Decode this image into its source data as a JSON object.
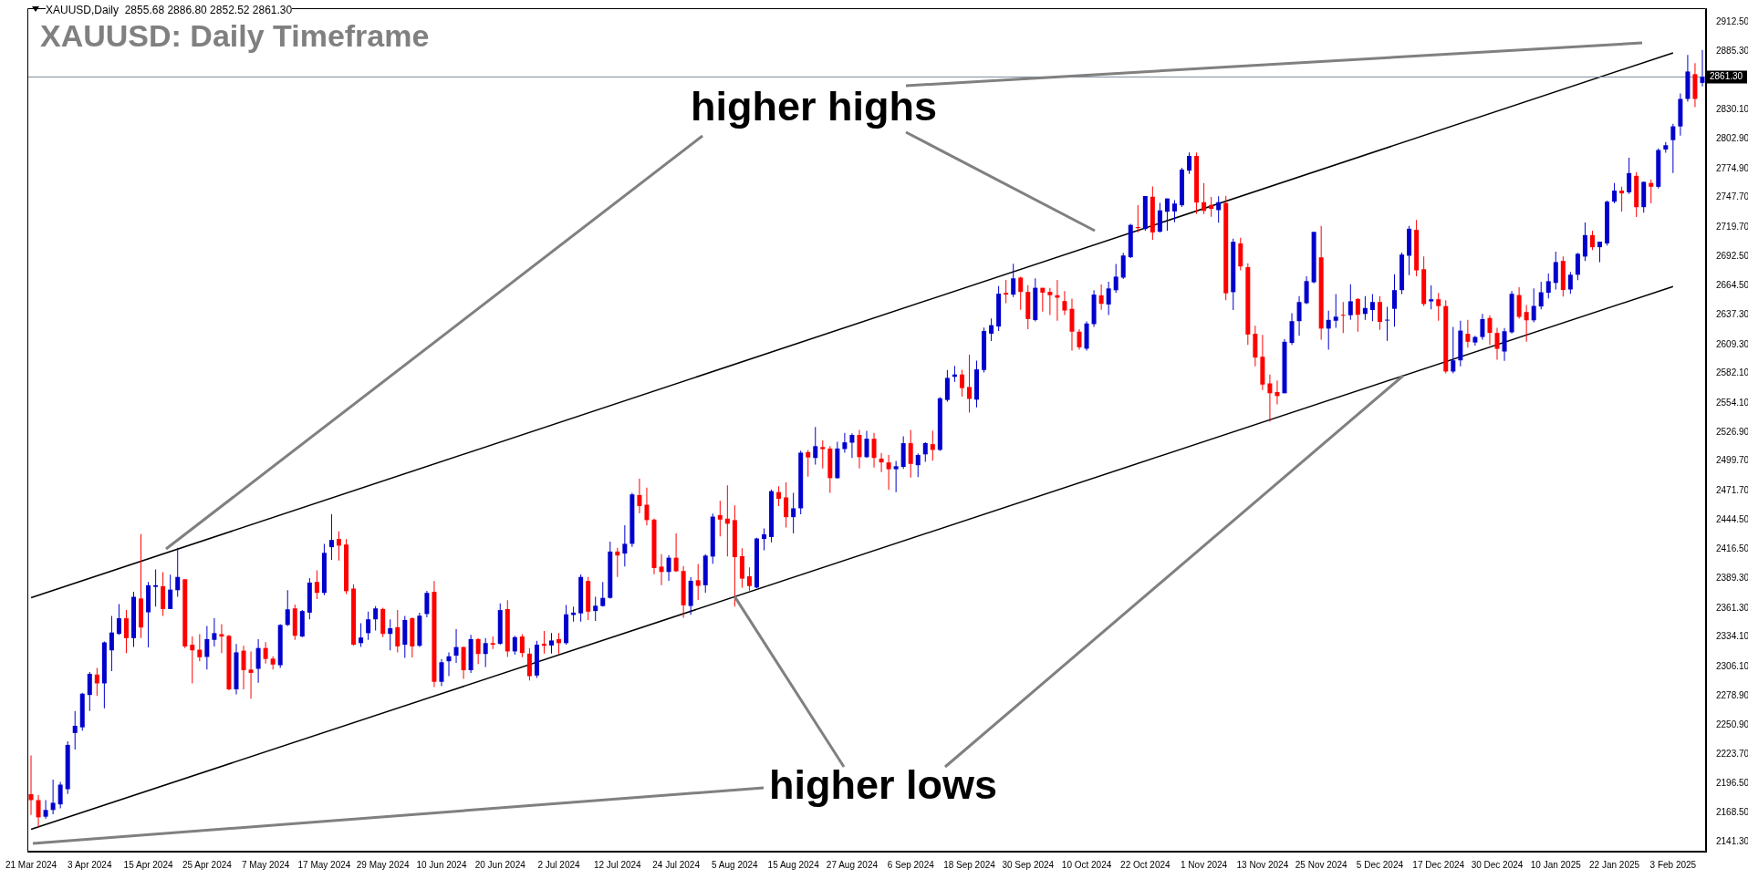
{
  "chart_data": {
    "type": "candlestick",
    "title": "XAUUSD: Daily Timeframe",
    "annotations": [
      "XAUUSD,Daily  2855.68 2886.80 2852.52 2861.30",
      "higher highs",
      {
        "text": "higher lows",
        "x": "5 Aug 2024",
        "y": 2372
      }
    ],
    "categories": [
      "21 Mar 2024",
      null,
      null,
      null,
      null,
      null,
      null,
      null,
      "3 Apr 2024",
      null,
      null,
      null,
      null,
      null,
      null,
      null,
      "15 Apr 2024",
      null,
      null,
      null,
      null,
      null,
      null,
      null,
      "25 Apr 2024",
      null,
      null,
      null,
      null,
      null,
      null,
      null,
      "7 May 2024",
      null,
      null,
      null,
      null,
      null,
      null,
      null,
      "17 May 2024",
      null,
      null,
      null,
      null,
      null,
      null,
      null,
      "29 May 2024",
      null,
      null,
      null,
      null,
      null,
      null,
      null,
      "10 Jun 2024",
      null,
      null,
      null,
      null,
      null,
      null,
      null,
      "20 Jun 2024",
      null,
      null,
      null,
      null,
      null,
      null,
      null,
      "2 Jul 2024",
      null,
      null,
      null,
      null,
      null,
      null,
      null,
      "12 Jul 2024",
      null,
      null,
      null,
      null,
      null,
      null,
      null,
      "24 Jul 2024",
      null,
      null,
      null,
      null,
      null,
      null,
      null,
      "5 Aug 2024",
      null,
      null,
      null,
      null,
      null,
      null,
      null,
      "15 Aug 2024",
      null,
      null,
      null,
      null,
      null,
      null,
      null,
      "27 Aug 2024",
      null,
      null,
      null,
      null,
      null,
      null,
      null,
      "6 Sep 2024",
      null,
      null,
      null,
      null,
      null,
      null,
      null,
      "18 Sep 2024",
      null,
      null,
      null,
      null,
      null,
      null,
      null,
      "30 Sep 2024",
      null,
      null,
      null,
      null,
      null,
      null,
      null,
      "10 Oct 2024",
      null,
      null,
      null,
      null,
      null,
      null,
      null,
      "22 Oct 2024",
      null,
      null,
      null,
      null,
      null,
      null,
      null,
      "1 Nov 2024",
      null,
      null,
      null,
      null,
      null,
      null,
      null,
      "13 Nov 2024",
      null,
      null,
      null,
      null,
      null,
      null,
      null,
      "25 Nov 2024",
      null,
      null,
      null,
      null,
      null,
      null,
      null,
      "5 Dec 2024",
      null,
      null,
      null,
      null,
      null,
      null,
      null,
      "17 Dec 2024",
      null,
      null,
      null,
      null,
      null,
      null,
      null,
      "30 Dec 2024",
      null,
      null,
      null,
      null,
      null,
      null,
      null,
      "10 Jan 2025",
      null,
      null,
      null,
      null,
      null,
      null,
      null,
      "22 Jan 2025",
      null,
      null,
      null,
      null,
      null,
      null,
      null,
      "3 Feb 2025",
      null,
      null,
      null,
      null
    ],
    "ohlc": [
      [
        2186.1,
        2222.5,
        2166.5,
        2180.5
      ],
      [
        2180.5,
        2185.2,
        2155.6,
        2164.3
      ],
      [
        2164.9,
        2180.5,
        2162.8,
        2171.2
      ],
      [
        2171.2,
        2199.8,
        2167.1,
        2178.0
      ],
      [
        2176.5,
        2197.6,
        2172.7,
        2195.1
      ],
      [
        2190.8,
        2235.9,
        2186.4,
        2232.5
      ],
      [
        2243.7,
        2264.5,
        2228.1,
        2250.5
      ],
      [
        2249.0,
        2281.6,
        2245.9,
        2280.7
      ],
      [
        2279.5,
        2301.2,
        2264.5,
        2299.4
      ],
      [
        2298.7,
        2305.0,
        2278.5,
        2290.4
      ],
      [
        2290.4,
        2329.9,
        2267.0,
        2329.0
      ],
      [
        2321.5,
        2353.8,
        2301.9,
        2338.3
      ],
      [
        2337.0,
        2365.0,
        2336.1,
        2351.7
      ],
      [
        2351.7,
        2359.4,
        2319.0,
        2333.0
      ],
      [
        2333.0,
        2376.6,
        2324.6,
        2371.9
      ],
      [
        2370.3,
        2431.0,
        2333.0,
        2343.0
      ],
      [
        2357.3,
        2385.9,
        2324.3,
        2382.8
      ],
      [
        2381.2,
        2397.7,
        2362.6,
        2382.8
      ],
      [
        2381.9,
        2395.2,
        2353.8,
        2360.4
      ],
      [
        2360.4,
        2392.7,
        2360.4,
        2378.7
      ],
      [
        2378.1,
        2418.0,
        2371.9,
        2390.6
      ],
      [
        2388.4,
        2388.4,
        2323.7,
        2325.2
      ],
      [
        2326.8,
        2334.5,
        2290.4,
        2321.5
      ],
      [
        2322.1,
        2336.7,
        2311.2,
        2315.0
      ],
      [
        2315.3,
        2344.5,
        2303.4,
        2332.1
      ],
      [
        2331.4,
        2351.7,
        2325.2,
        2337.7
      ],
      [
        2336.7,
        2346.1,
        2319.0,
        2334.5
      ],
      [
        2335.2,
        2336.1,
        2284.0,
        2284.8
      ],
      [
        2284.8,
        2327.4,
        2280.1,
        2319.6
      ],
      [
        2321.2,
        2325.8,
        2284.8,
        2302.8
      ],
      [
        2303.4,
        2320.5,
        2276.0,
        2300.3
      ],
      [
        2304.1,
        2332.1,
        2291.0,
        2323.7
      ],
      [
        2323.7,
        2329.3,
        2309.0,
        2313.4
      ],
      [
        2313.7,
        2315.9,
        2303.4,
        2308.1
      ],
      [
        2307.5,
        2346.1,
        2305.0,
        2345.4
      ],
      [
        2345.4,
        2378.1,
        2344.5,
        2360.1
      ],
      [
        2361.0,
        2364.7,
        2331.4,
        2335.2
      ],
      [
        2334.5,
        2359.4,
        2333.9,
        2358.5
      ],
      [
        2357.0,
        2389.6,
        2350.7,
        2385.3
      ],
      [
        2385.9,
        2396.8,
        2369.7,
        2375.6
      ],
      [
        2375.6,
        2421.7,
        2373.4,
        2413.3
      ],
      [
        2418.6,
        2449.7,
        2406.7,
        2425.4
      ],
      [
        2426.3,
        2433.5,
        2406.1,
        2420.1
      ],
      [
        2421.1,
        2426.3,
        2374.4,
        2377.2
      ],
      [
        2379.7,
        2383.7,
        2326.1,
        2326.8
      ],
      [
        2328.3,
        2347.0,
        2324.6,
        2333.6
      ],
      [
        2337.7,
        2357.9,
        2331.4,
        2350.7
      ],
      [
        2350.7,
        2363.2,
        2340.1,
        2361.0
      ],
      [
        2360.4,
        2361.6,
        2333.9,
        2337.0
      ],
      [
        2337.0,
        2350.7,
        2321.5,
        2342.3
      ],
      [
        2343.3,
        2359.4,
        2319.6,
        2325.2
      ],
      [
        2326.8,
        2353.8,
        2314.3,
        2350.1
      ],
      [
        2351.7,
        2352.6,
        2314.9,
        2325.2
      ],
      [
        2325.8,
        2356.9,
        2324.6,
        2354.1
      ],
      [
        2355.7,
        2377.5,
        2352.6,
        2375.6
      ],
      [
        2376.6,
        2386.8,
        2287.0,
        2291.9
      ],
      [
        2291.9,
        2313.4,
        2287.9,
        2310.3
      ],
      [
        2311.2,
        2319.6,
        2297.2,
        2315.9
      ],
      [
        2316.5,
        2341.4,
        2309.6,
        2324.6
      ],
      [
        2324.6,
        2325.2,
        2294.7,
        2302.8
      ],
      [
        2302.8,
        2336.1,
        2300.3,
        2332.1
      ],
      [
        2332.1,
        2333.0,
        2308.7,
        2318.1
      ],
      [
        2318.1,
        2333.0,
        2305.9,
        2328.3
      ],
      [
        2328.3,
        2334.5,
        2322.7,
        2326.8
      ],
      [
        2327.7,
        2365.7,
        2326.8,
        2359.4
      ],
      [
        2360.4,
        2368.8,
        2315.3,
        2320.5
      ],
      [
        2320.5,
        2335.2,
        2317.4,
        2333.9
      ],
      [
        2334.5,
        2336.7,
        2315.0,
        2319.0
      ],
      [
        2318.4,
        2323.7,
        2293.2,
        2297.2
      ],
      [
        2297.8,
        2330.5,
        2295.6,
        2326.8
      ],
      [
        2327.7,
        2339.8,
        2318.4,
        2325.8
      ],
      [
        2326.1,
        2337.7,
        2318.4,
        2330.8
      ],
      [
        2332.1,
        2337.7,
        2318.1,
        2328.3
      ],
      [
        2328.3,
        2364.1,
        2326.8,
        2355.4
      ],
      [
        2354.8,
        2362.6,
        2348.5,
        2357.0
      ],
      [
        2356.3,
        2393.0,
        2348.5,
        2390.6
      ],
      [
        2386.8,
        2390.6,
        2350.1,
        2357.9
      ],
      [
        2358.5,
        2371.9,
        2349.2,
        2363.5
      ],
      [
        2363.2,
        2385.9,
        2362.6,
        2370.9
      ],
      [
        2370.9,
        2423.9,
        2370.3,
        2414.5
      ],
      [
        2414.5,
        2418.0,
        2390.6,
        2410.8
      ],
      [
        2412.6,
        2439.3,
        2400.4,
        2421.8
      ],
      [
        2421.8,
        2469.7,
        2419.0,
        2468.3
      ],
      [
        2467.7,
        2483.1,
        2450.5,
        2457.4
      ],
      [
        2458.6,
        2474.7,
        2439.1,
        2444.1
      ],
      [
        2444.6,
        2445.5,
        2393.1,
        2399.0
      ],
      [
        2400.3,
        2412.0,
        2382.8,
        2395.3
      ],
      [
        2395.3,
        2411.2,
        2387.0,
        2408.7
      ],
      [
        2408.7,
        2431.5,
        2395.3,
        2395.9
      ],
      [
        2396.2,
        2400.9,
        2352.2,
        2363.9
      ],
      [
        2363.3,
        2390.3,
        2354.9,
        2387.0
      ],
      [
        2387.5,
        2402.8,
        2368.9,
        2382.2
      ],
      [
        2382.8,
        2412.0,
        2375.8,
        2410.7
      ],
      [
        2409.8,
        2450.2,
        2403.1,
        2447.4
      ],
      [
        2448.8,
        2462.2,
        2428.7,
        2444.6
      ],
      [
        2445.5,
        2476.9,
        2409.8,
        2440.7
      ],
      [
        2444.1,
        2458.0,
        2362.7,
        2409.3
      ],
      [
        2410.1,
        2417.6,
        2380.6,
        2389.0
      ],
      [
        2391.2,
        2399.5,
        2377.8,
        2382.0
      ],
      [
        2380.6,
        2427.4,
        2380.0,
        2426.8
      ],
      [
        2426.3,
        2436.3,
        2415.7,
        2430.7
      ],
      [
        2428.2,
        2472.8,
        2423.2,
        2471.4
      ],
      [
        2470.5,
        2476.1,
        2457.4,
        2464.1
      ],
      [
        2465.5,
        2479.7,
        2437.1,
        2446.9
      ],
      [
        2446.9,
        2469.7,
        2431.5,
        2455.2
      ],
      [
        2455.2,
        2509.5,
        2449.6,
        2507.6
      ],
      [
        2508.1,
        2510.1,
        2485.0,
        2503.1
      ],
      [
        2502.6,
        2531.8,
        2496.4,
        2513.7
      ],
      [
        2512.9,
        2519.3,
        2492.8,
        2510.9
      ],
      [
        2511.5,
        2513.7,
        2469.7,
        2483.6
      ],
      [
        2483.6,
        2517.9,
        2483.1,
        2511.5
      ],
      [
        2511.0,
        2526.2,
        2507.6,
        2517.3
      ],
      [
        2517.0,
        2525.7,
        2502.6,
        2524.3
      ],
      [
        2524.3,
        2529.0,
        2492.8,
        2503.4
      ],
      [
        2503.4,
        2528.2,
        2502.6,
        2520.7
      ],
      [
        2520.7,
        2526.2,
        2493.6,
        2502.6
      ],
      [
        2502.0,
        2507.3,
        2489.2,
        2498.4
      ],
      [
        2498.4,
        2505.3,
        2472.5,
        2492.0
      ],
      [
        2492.0,
        2499.8,
        2470.5,
        2494.8
      ],
      [
        2494.2,
        2522.9,
        2492.3,
        2516.5
      ],
      [
        2516.5,
        2529.0,
        2484.2,
        2497.0
      ],
      [
        2495.8,
        2507.0,
        2484.6,
        2505.4
      ],
      [
        2506.0,
        2517.5,
        2499.0,
        2516.6
      ],
      [
        2515.6,
        2528.4,
        2500.0,
        2510.2
      ],
      [
        2510.2,
        2559.8,
        2509.2,
        2558.8
      ],
      [
        2557.2,
        2585.4,
        2555.6,
        2578.0
      ],
      [
        2579.0,
        2589.2,
        2574.2,
        2581.2
      ],
      [
        2581.2,
        2585.4,
        2560.4,
        2568.4
      ],
      [
        2569.4,
        2599.8,
        2545.4,
        2558.2
      ],
      [
        2557.5,
        2594.3,
        2550.2,
        2586.0
      ],
      [
        2585.4,
        2625.4,
        2583.1,
        2622.2
      ],
      [
        2619.6,
        2634.0,
        2612.6,
        2627.6
      ],
      [
        2626.3,
        2664.4,
        2622.2,
        2657.3
      ],
      [
        2658.0,
        2670.1,
        2648.4,
        2656.4
      ],
      [
        2656.4,
        2685.5,
        2654.1,
        2671.7
      ],
      [
        2672.4,
        2673.3,
        2642.0,
        2658.9
      ],
      [
        2658.9,
        2665.3,
        2623.8,
        2633.4
      ],
      [
        2632.4,
        2671.7,
        2631.1,
        2662.8
      ],
      [
        2662.8,
        2662.8,
        2640.4,
        2658.3
      ],
      [
        2659.0,
        2662.8,
        2637.2,
        2655.8
      ],
      [
        2655.8,
        2670.1,
        2631.8,
        2653.5
      ],
      [
        2650.3,
        2659.6,
        2637.2,
        2641.4
      ],
      [
        2643.0,
        2652.5,
        2603.6,
        2621.5
      ],
      [
        2621.5,
        2623.8,
        2604.6,
        2606.8
      ],
      [
        2605.5,
        2631.1,
        2603.6,
        2629.2
      ],
      [
        2628.6,
        2660.5,
        2626.0,
        2656.4
      ],
      [
        2655.7,
        2666.0,
        2642.0,
        2647.7
      ],
      [
        2647.1,
        2668.5,
        2637.2,
        2662.2
      ],
      [
        2660.5,
        2685.2,
        2658.0,
        2673.3
      ],
      [
        2672.4,
        2695.7,
        2671.1,
        2693.2
      ],
      [
        2691.6,
        2723.0,
        2690.9,
        2722.0
      ],
      [
        2720.0,
        2740.5,
        2715.0,
        2719.0
      ],
      [
        2718.1,
        2749.2,
        2716.5,
        2749.2
      ],
      [
        2748.5,
        2758.1,
        2707.9,
        2714.9
      ],
      [
        2715.6,
        2742.7,
        2714.9,
        2735.7
      ],
      [
        2734.4,
        2746.9,
        2716.5,
        2746.9
      ],
      [
        2734.7,
        2745.3,
        2724.5,
        2742.1
      ],
      [
        2740.5,
        2775.7,
        2738.9,
        2774.1
      ],
      [
        2773.1,
        2790.1,
        2770.0,
        2786.9
      ],
      [
        2786.9,
        2790.1,
        2732.5,
        2743.1
      ],
      [
        2743.4,
        2761.3,
        2732.2,
        2735.2
      ],
      [
        2740.8,
        2748.3,
        2729.6,
        2737.1
      ],
      [
        2735.9,
        2749.0,
        2724.0,
        2743.4
      ],
      [
        2742.7,
        2749.4,
        2651.2,
        2657.6
      ],
      [
        2658.7,
        2709.1,
        2641.9,
        2706.1
      ],
      [
        2704.6,
        2709.8,
        2679.2,
        2682.9
      ],
      [
        2682.2,
        2685.9,
        2609.1,
        2618.8
      ],
      [
        2619.5,
        2627.0,
        2588.9,
        2597.1
      ],
      [
        2597.9,
        2618.4,
        2566.5,
        2571.7
      ],
      [
        2572.8,
        2581.1,
        2536.7,
        2563.5
      ],
      [
        2564.6,
        2575.5,
        2553.1,
        2560.9
      ],
      [
        2563.5,
        2614.6,
        2563.5,
        2612.0
      ],
      [
        2610.9,
        2638.9,
        2609.1,
        2631.4
      ],
      [
        2631.4,
        2654.9,
        2617.6,
        2649.4
      ],
      [
        2648.3,
        2673.6,
        2647.5,
        2669.1
      ],
      [
        2668.0,
        2715.4,
        2666.9,
        2715.4
      ],
      [
        2691.5,
        2721.0,
        2613.9,
        2624.4
      ],
      [
        2624.4,
        2641.2,
        2604.6,
        2632.6
      ],
      [
        2631.8,
        2656.8,
        2625.1,
        2635.6
      ],
      [
        2637.4,
        2649.4,
        2620.3,
        2636.7
      ],
      [
        2637.0,
        2666.2,
        2632.6,
        2650.1
      ],
      [
        2652.3,
        2653.1,
        2621.4,
        2637.4
      ],
      [
        2638.2,
        2654.9,
        2632.6,
        2643.8
      ],
      [
        2641.9,
        2656.8,
        2631.4,
        2649.4
      ],
      [
        2649.4,
        2654.9,
        2623.2,
        2630.7
      ],
      [
        2632.0,
        2644.9,
        2612.8,
        2632.8
      ],
      [
        2643.0,
        2675.5,
        2626.2,
        2660.6
      ],
      [
        2660.6,
        2696.0,
        2656.8,
        2694.1
      ],
      [
        2693.0,
        2721.0,
        2674.7,
        2718.4
      ],
      [
        2717.3,
        2726.6,
        2673.6,
        2679.2
      ],
      [
        2680.3,
        2692.3,
        2645.6,
        2647.5
      ],
      [
        2650.0,
        2665.0,
        2642.6,
        2652.0
      ],
      [
        2652.0,
        2657.9,
        2631.8,
        2645.6
      ],
      [
        2645.6,
        2651.2,
        2582.2,
        2584.0
      ],
      [
        2584.0,
        2625.9,
        2582.2,
        2594.5
      ],
      [
        2594.5,
        2631.8,
        2588.9,
        2622.5
      ],
      [
        2619.5,
        2632.6,
        2606.4,
        2612.0
      ],
      [
        2611.3,
        2617.6,
        2608.3,
        2616.5
      ],
      [
        2616.5,
        2638.2,
        2613.9,
        2633.3
      ],
      [
        2634.4,
        2637.0,
        2609.1,
        2620.3
      ],
      [
        2620.3,
        2625.1,
        2595.2,
        2605.3
      ],
      [
        2602.8,
        2625.0,
        2594.0,
        2621.9
      ],
      [
        2620.9,
        2659.6,
        2619.8,
        2657.1
      ],
      [
        2656.0,
        2663.3,
        2633.8,
        2635.4
      ],
      [
        2640.0,
        2646.7,
        2612.1,
        2632.2
      ],
      [
        2632.2,
        2662.2,
        2630.2,
        2645.7
      ],
      [
        2645.2,
        2668.4,
        2642.6,
        2658.6
      ],
      [
        2658.1,
        2676.2,
        2652.9,
        2669.0
      ],
      [
        2667.4,
        2696.9,
        2661.2,
        2687.0
      ],
      [
        2688.1,
        2692.2,
        2654.5,
        2660.7
      ],
      [
        2661.2,
        2677.7,
        2657.1,
        2675.1
      ],
      [
        2675.1,
        2695.8,
        2670.0,
        2694.8
      ],
      [
        2692.2,
        2724.3,
        2688.1,
        2712.4
      ],
      [
        2712.4,
        2716.5,
        2698.4,
        2701.0
      ],
      [
        2701.0,
        2706.2,
        2687.0,
        2706.2
      ],
      [
        2704.6,
        2744.9,
        2702.6,
        2743.9
      ],
      [
        2743.9,
        2761.5,
        2742.4,
        2754.3
      ],
      [
        2754.3,
        2757.9,
        2734.6,
        2751.7
      ],
      [
        2752.7,
        2785.3,
        2751.2,
        2770.8
      ],
      [
        2768.2,
        2771.8,
        2729.4,
        2738.7
      ],
      [
        2738.7,
        2763.0,
        2733.6,
        2762.5
      ],
      [
        2761.5,
        2764.6,
        2742.4,
        2757.9
      ],
      [
        2757.9,
        2794.1,
        2756.3,
        2792.5
      ],
      [
        2793.0,
        2800.0,
        2790.0,
        2797.0
      ],
      [
        2801.8,
        2817.3,
        2770.8,
        2814.8
      ],
      [
        2814.7,
        2845.8,
        2806.0,
        2840.6
      ],
      [
        2840.6,
        2882.0,
        2838.0,
        2866.4
      ],
      [
        2863.9,
        2874.2,
        2832.8,
        2840.6
      ],
      [
        2855.7,
        2886.8,
        2852.5,
        2861.3
      ]
    ],
    "series": [
      {
        "type": "line",
        "x": [
          "21 Mar 2024",
          "3 Feb 2025"
        ],
        "values": [
          2371,
          2884
        ],
        "color": "#000000"
      },
      {
        "type": "line",
        "x": [
          "21 Mar 2024",
          "3 Feb 2025"
        ],
        "values": [
          2153,
          2664
        ],
        "color": "#000000"
      }
    ],
    "ref_lines": [
      {
        "axis": "y",
        "value": 2861.3,
        "label": "2861.30",
        "color": "#778899"
      }
    ],
    "ylim": [
      2132,
      2926
    ],
    "yticks": [
      {
        "value": 2141.3,
        "label": "2141.30"
      },
      {
        "value": 2168.5,
        "label": "2168.50"
      },
      {
        "value": 2196.5,
        "label": "2196.50"
      },
      {
        "value": 2223.7,
        "label": "2223.70"
      },
      {
        "value": 2250.9,
        "label": "2250.90"
      },
      {
        "value": 2278.9,
        "label": "2278.90"
      },
      {
        "value": 2306.1,
        "label": "2306.10"
      },
      {
        "value": 2334.1,
        "label": "2334.10"
      },
      {
        "value": 2361.3,
        "label": "2361.30"
      },
      {
        "value": 2389.3,
        "label": "2389.30"
      },
      {
        "value": 2416.5,
        "label": "2416.50"
      },
      {
        "value": 2444.5,
        "label": "2444.50"
      },
      {
        "value": 2471.7,
        "label": "2471.70"
      },
      {
        "value": 2499.7,
        "label": "2499.70"
      },
      {
        "value": 2526.9,
        "label": "2526.90"
      },
      {
        "value": 2554.1,
        "label": "2554.10"
      },
      {
        "value": 2582.1,
        "label": "2582.10"
      },
      {
        "value": 2609.3,
        "label": "2609.30"
      },
      {
        "value": 2637.3,
        "label": "2637.30"
      },
      {
        "value": 2664.5,
        "label": "2664.50"
      },
      {
        "value": 2692.5,
        "label": "2692.50"
      },
      {
        "value": 2719.7,
        "label": "2719.70"
      },
      {
        "value": 2747.7,
        "label": "2747.70"
      },
      {
        "value": 2774.9,
        "label": "2774.90"
      },
      {
        "value": 2802.9,
        "label": "2802.90"
      },
      {
        "value": 2830.1,
        "label": "2830.10"
      },
      {
        "value": 2885.3,
        "label": "2885.30"
      },
      {
        "value": 2912.5,
        "label": "2912.50"
      }
    ]
  }
}
